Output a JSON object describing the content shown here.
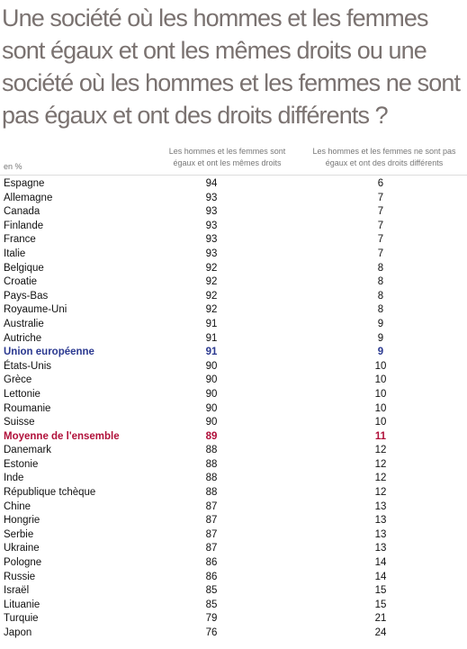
{
  "title": "Une société où les hommes et les femmes sont égaux et ont les mêmes droits ou une société où les hommes et les femmes ne sont pas égaux et ont des droits différents ?",
  "table": {
    "headers": [
      "en %",
      "Les hommes et les femmes sont égaux et ont les mêmes droits",
      "Les hommes et les femmes ne sont pas égaux et ont des droits différents"
    ],
    "rows": [
      {
        "country": "Espagne",
        "equal": 94,
        "unequal": 6
      },
      {
        "country": "Allemagne",
        "equal": 93,
        "unequal": 7
      },
      {
        "country": "Canada",
        "equal": 93,
        "unequal": 7
      },
      {
        "country": "Finlande",
        "equal": 93,
        "unequal": 7
      },
      {
        "country": "France",
        "equal": 93,
        "unequal": 7
      },
      {
        "country": "Italie",
        "equal": 93,
        "unequal": 7
      },
      {
        "country": "Belgique",
        "equal": 92,
        "unequal": 8
      },
      {
        "country": "Croatie",
        "equal": 92,
        "unequal": 8
      },
      {
        "country": "Pays-Bas",
        "equal": 92,
        "unequal": 8
      },
      {
        "country": "Royaume-Uni",
        "equal": 92,
        "unequal": 8
      },
      {
        "country": "Australie",
        "equal": 91,
        "unequal": 9
      },
      {
        "country": "Autriche",
        "equal": 91,
        "unequal": 9
      },
      {
        "country": "Union européenne",
        "equal": 91,
        "unequal": 9,
        "color": "#2b3990"
      },
      {
        "country": "États-Unis",
        "equal": 90,
        "unequal": 10
      },
      {
        "country": "Grèce",
        "equal": 90,
        "unequal": 10
      },
      {
        "country": "Lettonie",
        "equal": 90,
        "unequal": 10
      },
      {
        "country": "Roumanie",
        "equal": 90,
        "unequal": 10
      },
      {
        "country": "Suisse",
        "equal": 90,
        "unequal": 10
      },
      {
        "country": "Moyenne de l'ensemble",
        "equal": 89,
        "unequal": 11,
        "color": "#b0103a"
      },
      {
        "country": "Danemark",
        "equal": 88,
        "unequal": 12
      },
      {
        "country": "Estonie",
        "equal": 88,
        "unequal": 12
      },
      {
        "country": "Inde",
        "equal": 88,
        "unequal": 12
      },
      {
        "country": "République tchèque",
        "equal": 88,
        "unequal": 12
      },
      {
        "country": "Chine",
        "equal": 87,
        "unequal": 13
      },
      {
        "country": "Hongrie",
        "equal": 87,
        "unequal": 13
      },
      {
        "country": "Serbie",
        "equal": 87,
        "unequal": 13
      },
      {
        "country": "Ukraine",
        "equal": 87,
        "unequal": 13
      },
      {
        "country": "Pologne",
        "equal": 86,
        "unequal": 14
      },
      {
        "country": "Russie",
        "equal": 86,
        "unequal": 14
      },
      {
        "country": "Israël",
        "equal": 85,
        "unequal": 15
      },
      {
        "country": "Lituanie",
        "equal": 85,
        "unequal": 15
      },
      {
        "country": "Turquie",
        "equal": 79,
        "unequal": 21
      },
      {
        "country": "Japon",
        "equal": 76,
        "unequal": 24
      }
    ]
  }
}
